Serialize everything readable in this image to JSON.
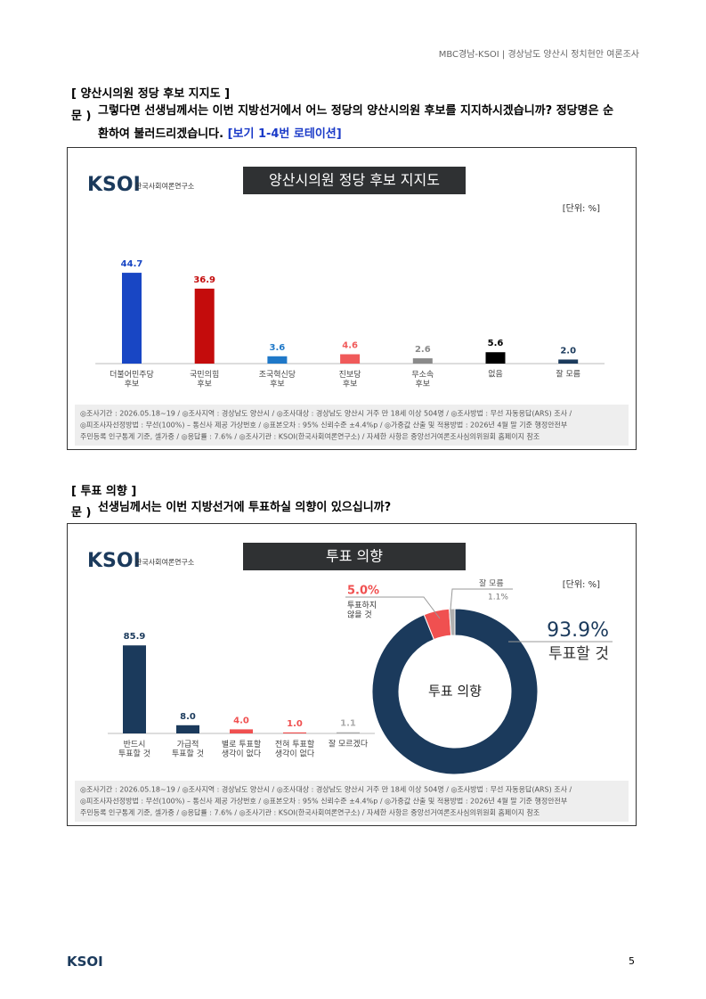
{
  "header": "MBC경남-KSOI | 경상남도 양산시 정치현안 여론조사",
  "branding": {
    "logo": "KSOI",
    "logo_sub": "한국사회여론연구소"
  },
  "sections": [
    {
      "heading": "[ 양산시의원 정당 후보 지지도 ]",
      "q_label": "문 )",
      "question": "그렇다면 선생님께서는 이번 지방선거에서 어느 정당의 양산시의원 후보를 지지하시겠습니까? 정당명은 순환하여 불러드리겠습니다.",
      "note": "[보기 1-4번 로테이션]"
    },
    {
      "heading": "[ 투표 의향 ]",
      "q_label": "문 )",
      "question": "선생님께서는 이번 지방선거에 투표하실 의향이 있으십니까?"
    }
  ],
  "chart_data": [
    {
      "type": "bar",
      "title": "양산시의원 정당 후보 지지도",
      "unit": "[단위: %]",
      "categories": [
        "더불어민주당\n후보",
        "국민의힘\n후보",
        "조국혁신당\n후보",
        "진보당\n후보",
        "무소속\n후보",
        "없음",
        "잘 모름"
      ],
      "values": [
        44.7,
        36.9,
        3.6,
        4.6,
        2.6,
        5.6,
        2.0
      ],
      "value_labels": [
        "44.7",
        "36.9",
        "3.6",
        "4.6",
        "2.6",
        "5.6",
        "2.0"
      ],
      "colors": [
        "#1846c4",
        "#c40c0c",
        "#1f78c8",
        "#f05a5a",
        "#8a8a8a",
        "#000000",
        "#1b3a5c"
      ],
      "ylim": [
        0,
        50
      ],
      "notes": [
        "◎조사기간 : 2026.05.18~19 / ◎조사지역 : 경상남도 양산시 / ◎조사대상 : 경상남도 양산시 거주 만 18세 이상 504명 / ◎조사방법 : 무선 자동응답(ARS) 조사 /",
        "◎피조사자선정방법 : 무선(100%) – 통신사 제공 가상번호 / ◎표본오차 : 95% 신뢰수준 ±4.4%p / ◎가중값 산출 및 적용방법 : 2026년 4월 말 기준 행정안전부",
        "주민등록 인구통계 기준, 셀가중 / ◎응답률 : 7.6% / ◎조사기관 : KSOI(한국사회여론연구소) / 자세한 사항은 중앙선거여론조사심의위원회 홈페이지 참조"
      ]
    },
    {
      "type": "bar",
      "title": "투표 의향",
      "unit": "[단위: %]",
      "categories": [
        "반드시\n투표할 것",
        "가급적\n투표할 것",
        "별로 투표할\n생각이 없다",
        "전혀 투표할\n생각이 없다",
        "잘 모르겠다"
      ],
      "values": [
        85.9,
        8.0,
        4.0,
        1.0,
        1.1
      ],
      "value_labels": [
        "85.9",
        "8.0",
        "4.0",
        "1.0",
        "1.1"
      ],
      "colors": [
        "#1b3a5c",
        "#1b3a5c",
        "#f05050",
        "#f05050",
        "#aaaaaa"
      ],
      "ylim": [
        0,
        100
      ],
      "notes": [
        "◎조사기간 : 2026.05.18~19 / ◎조사지역 : 경상남도 양산시 / ◎조사대상 : 경상남도 양산시 거주 만 18세 이상 504명 / ◎조사방법 : 무선 자동응답(ARS) 조사 /",
        "◎피조사자선정방법 : 무선(100%) – 통신사 제공 가상번호 / ◎표본오차 : 95% 신뢰수준 ±4.4%p / ◎가중값 산출 및 적용방법 : 2026년 4월 말 기준 행정안전부",
        "주민등록 인구통계 기준, 셀가중 / ◎응답률 : 7.6% / ◎조사기관 : KSOI(한국사회여론연구소) / 자세한 사항은 중앙선거여론조사심의위원회 홈페이지 참조"
      ]
    },
    {
      "type": "donut",
      "center_label": "투표 의향",
      "categories": [
        "투표할 것",
        "투표하지\n않을 것",
        "잘 모름"
      ],
      "values": [
        93.9,
        5.0,
        1.1
      ],
      "value_labels": [
        "93.9%",
        "5.0%",
        "1.1%"
      ],
      "colors": [
        "#1b3a5c",
        "#f05050",
        "#b0b0b0"
      ]
    }
  ],
  "footer": {
    "logo": "KSOI",
    "page": "5"
  }
}
